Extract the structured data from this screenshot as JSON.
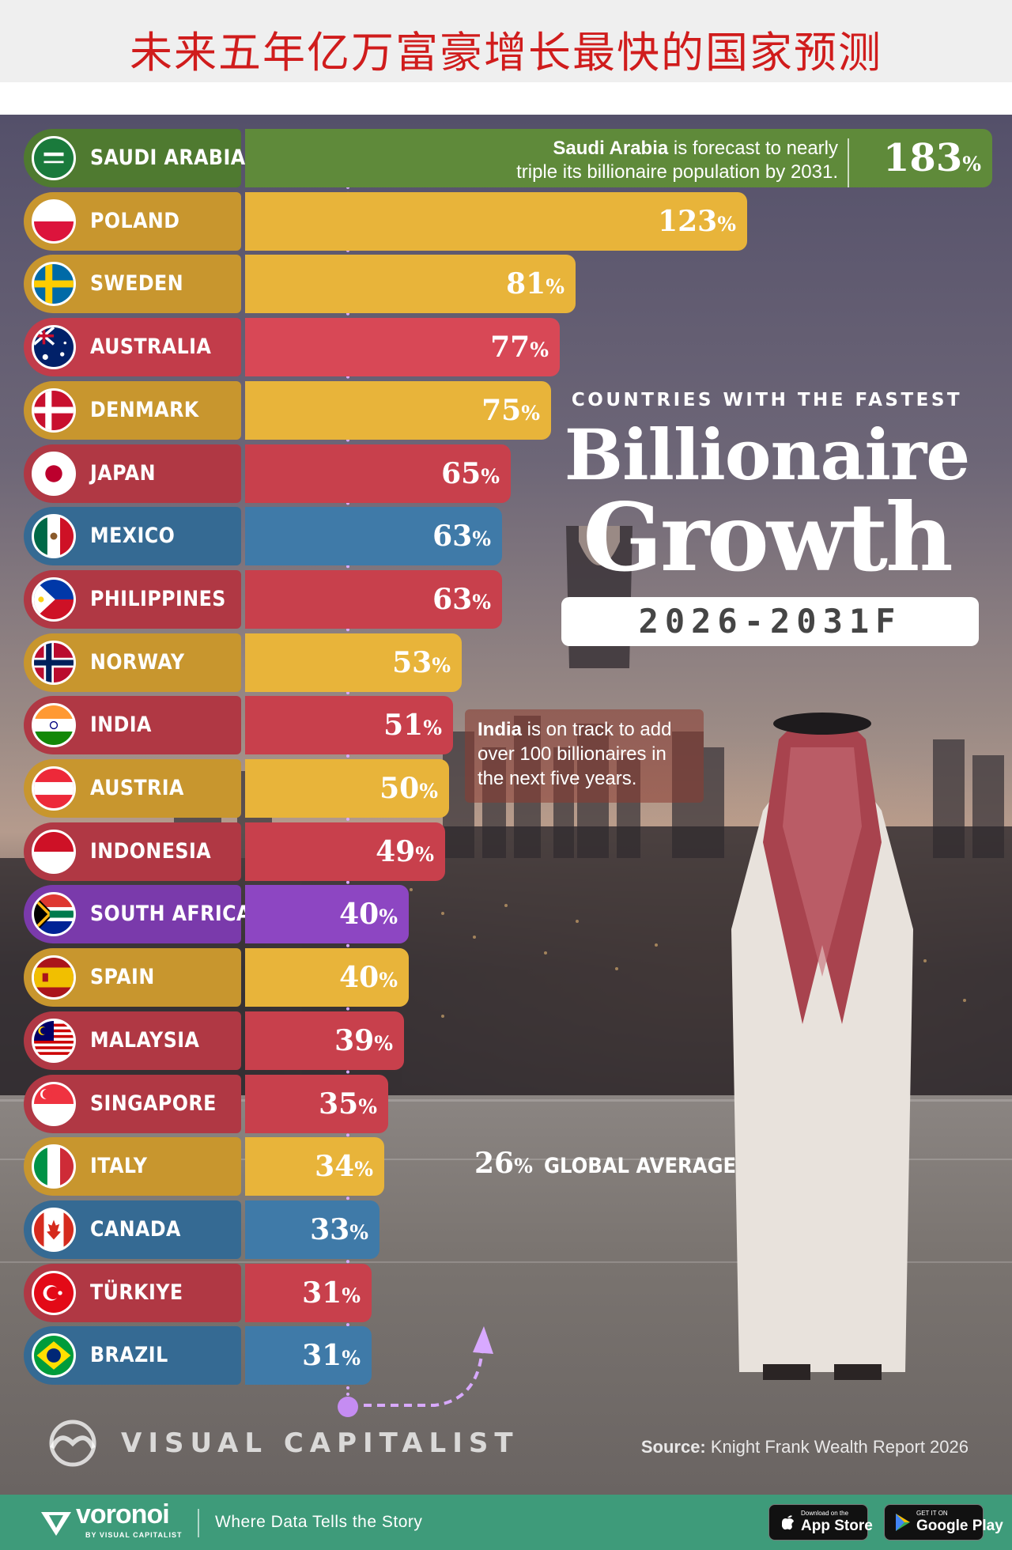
{
  "page_title": "未来五年亿万富豪增长最快的国家预测",
  "chart_data": {
    "type": "bar",
    "orientation": "horizontal",
    "subtitle": "COUNTRIES WITH THE FASTEST",
    "title_line1": "Billionaire",
    "title_line2": "Growth",
    "period": "2026-2031F",
    "unit": "%",
    "xlim": [
      0,
      183
    ],
    "categories": [
      "SAUDI ARABIA",
      "POLAND",
      "SWEDEN",
      "AUSTRALIA",
      "DENMARK",
      "JAPAN",
      "MEXICO",
      "PHILIPPINES",
      "NORWAY",
      "INDIA",
      "AUSTRIA",
      "INDONESIA",
      "SOUTH AFRICA",
      "SPAIN",
      "MALAYSIA",
      "SINGAPORE",
      "ITALY",
      "CANADA",
      "TÜRKIYE",
      "BRAZIL"
    ],
    "values": [
      183,
      123,
      81,
      77,
      75,
      65,
      63,
      63,
      53,
      51,
      50,
      49,
      40,
      40,
      39,
      35,
      34,
      33,
      31,
      31
    ],
    "value_labels": [
      "183",
      "123",
      "81",
      "77",
      "75",
      "65",
      "63",
      "63",
      "53",
      "51",
      "50",
      "49",
      "40",
      "40",
      "39",
      "35",
      "34",
      "33",
      "31",
      "31"
    ],
    "bar_colors": [
      "#5f8a3a",
      "#e8b43a",
      "#e8b43a",
      "#d84856",
      "#e8b43a",
      "#c8404c",
      "#3f7aa8",
      "#c8404c",
      "#e8b43a",
      "#c8404c",
      "#e8b43a",
      "#c8404c",
      "#8d46c2",
      "#e8b43a",
      "#c8404c",
      "#c8404c",
      "#e8b43a",
      "#3f7aa8",
      "#c8404c",
      "#3f7aa8"
    ],
    "label_colors": [
      "#4f7a30",
      "#c8962e",
      "#c8962e",
      "#c23c4a",
      "#c8962e",
      "#b03844",
      "#356a93",
      "#b03844",
      "#c8962e",
      "#b03844",
      "#c8962e",
      "#b03844",
      "#7a3aab",
      "#c8962e",
      "#b03844",
      "#b03844",
      "#c8962e",
      "#356a93",
      "#b03844",
      "#356a93"
    ],
    "flag_codes": [
      "sa",
      "pl",
      "se",
      "au",
      "dk",
      "jp",
      "mx",
      "ph",
      "no",
      "in",
      "at",
      "id",
      "za",
      "es",
      "my",
      "sg",
      "it",
      "ca",
      "tr",
      "br"
    ],
    "reference_line": {
      "value": 26,
      "label": "GLOBAL AVERAGE"
    }
  },
  "annotations": {
    "saudi_bold": "Saudi Arabia",
    "saudi_text_1": " is forecast to nearly",
    "saudi_text_2": "triple its billionaire population by 2031.",
    "india_bold": "India",
    "india_text": " is on track to add over 100 billionaires in the next five years."
  },
  "global_average": {
    "value": "26",
    "label": "GLOBAL AVERAGE"
  },
  "branding": {
    "publisher": "VISUAL CAPITALIST",
    "source_label": "Source:",
    "source_text": " Knight Frank Wealth Report 2026"
  },
  "footer": {
    "brand": "voronoi",
    "brand_sub": "BY VISUAL CAPITALIST",
    "tagline": "Where Data Tells the Story",
    "app_store_small": "Download on the",
    "app_store_big": "App Store",
    "google_small": "GET IT ON",
    "google_big": "Google Play",
    "accent": "#3e9b7a"
  }
}
